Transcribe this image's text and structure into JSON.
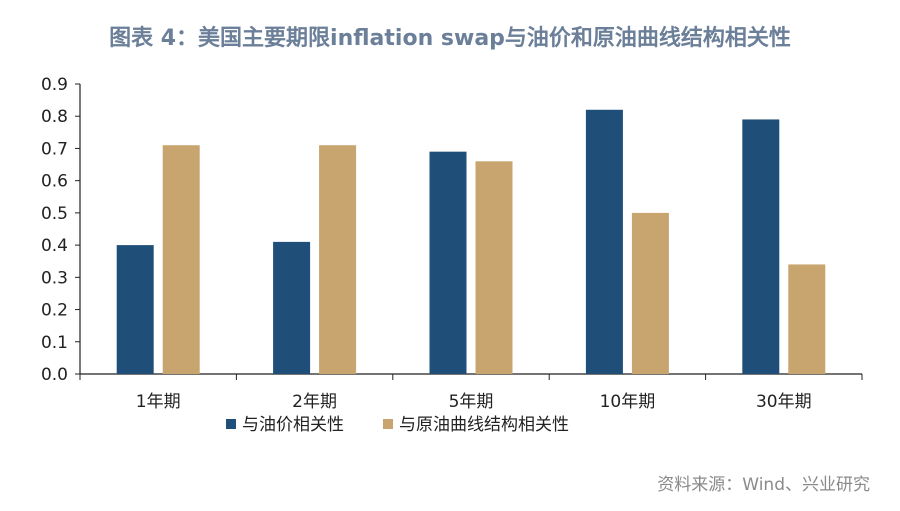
{
  "title": "图表 4：美国主要期限inflation swap与油价和原油曲线结构相关性",
  "source": "资料来源：Wind、兴业研究",
  "chart_data": {
    "type": "bar",
    "title": "图表 4：美国主要期限inflation swap与油价和原油曲线结构相关性",
    "categories": [
      "1年期",
      "2年期",
      "5年期",
      "10年期",
      "30年期"
    ],
    "series": [
      {
        "name": "与油价相关性",
        "color": "#1f4e79",
        "values": [
          0.4,
          0.41,
          0.69,
          0.82,
          0.79
        ]
      },
      {
        "name": "与原油曲线结构相关性",
        "color": "#c8a46e",
        "values": [
          0.71,
          0.71,
          0.66,
          0.5,
          0.34
        ]
      }
    ],
    "ylim": [
      0,
      0.9
    ],
    "yticks": [
      "0.0",
      "0.1",
      "0.2",
      "0.3",
      "0.4",
      "0.5",
      "0.6",
      "0.7",
      "0.8",
      "0.9"
    ],
    "xlabel": "",
    "ylabel": "",
    "grid": false,
    "legend_position": "bottom-left"
  }
}
